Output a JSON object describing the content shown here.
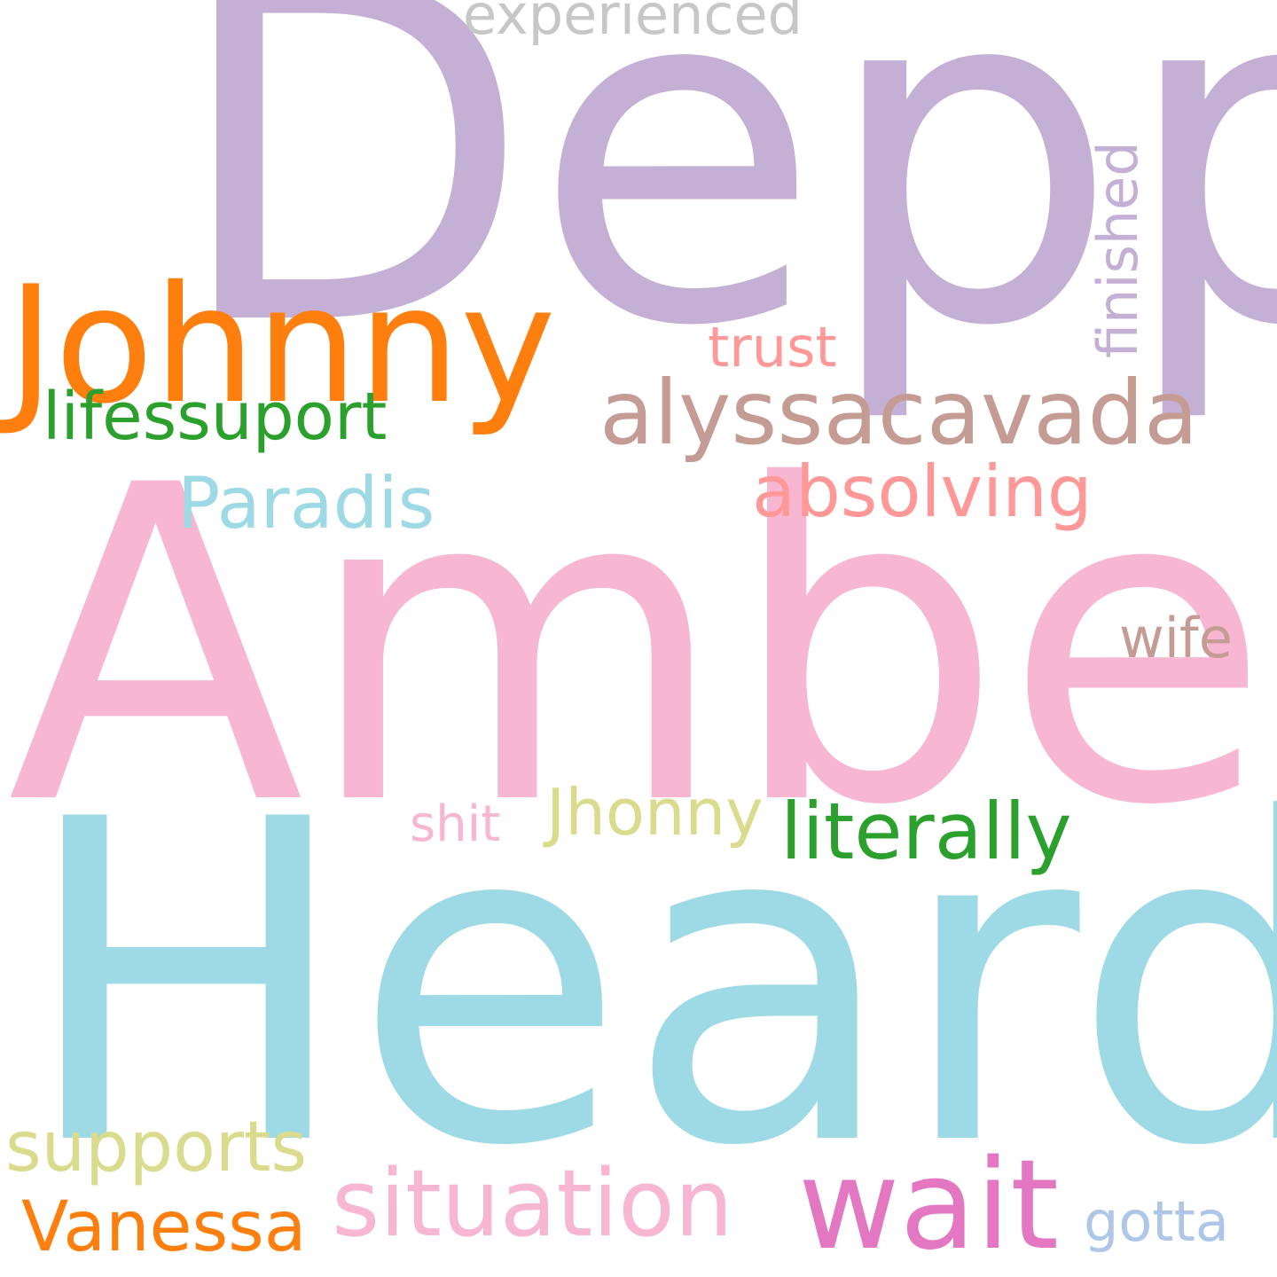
{
  "words": [
    {
      "text": "Depp",
      "color": "#c5b0d5"
    },
    {
      "text": "Johnny",
      "color": "#ff7f0e"
    },
    {
      "text": "Amber",
      "color": "#f7b6d2"
    },
    {
      "text": "Heard",
      "color": "#9edae5"
    },
    {
      "text": "experienced",
      "color": "#c7c7c7"
    },
    {
      "text": "finished",
      "color": "#c5b0d5"
    },
    {
      "text": "trust",
      "color": "#ff9896"
    },
    {
      "text": "alyssacavada",
      "color": "#c49c94"
    },
    {
      "text": "lifessuport",
      "color": "#2ca02c"
    },
    {
      "text": "absolving",
      "color": "#ff9896"
    },
    {
      "text": "Paradis",
      "color": "#9edae5"
    },
    {
      "text": "wife",
      "color": "#c49c94"
    },
    {
      "text": "shit",
      "color": "#f7b6d2"
    },
    {
      "text": "Jhonny",
      "color": "#dbdb8d"
    },
    {
      "text": "literally",
      "color": "#2ca02c"
    },
    {
      "text": "supports",
      "color": "#dbdb8d"
    },
    {
      "text": "situation",
      "color": "#f7b6d2"
    },
    {
      "text": "wait",
      "color": "#e377c2"
    },
    {
      "text": "Vanessa",
      "color": "#ff7f0e"
    },
    {
      "text": "gotta",
      "color": "#aec7e8"
    }
  ]
}
